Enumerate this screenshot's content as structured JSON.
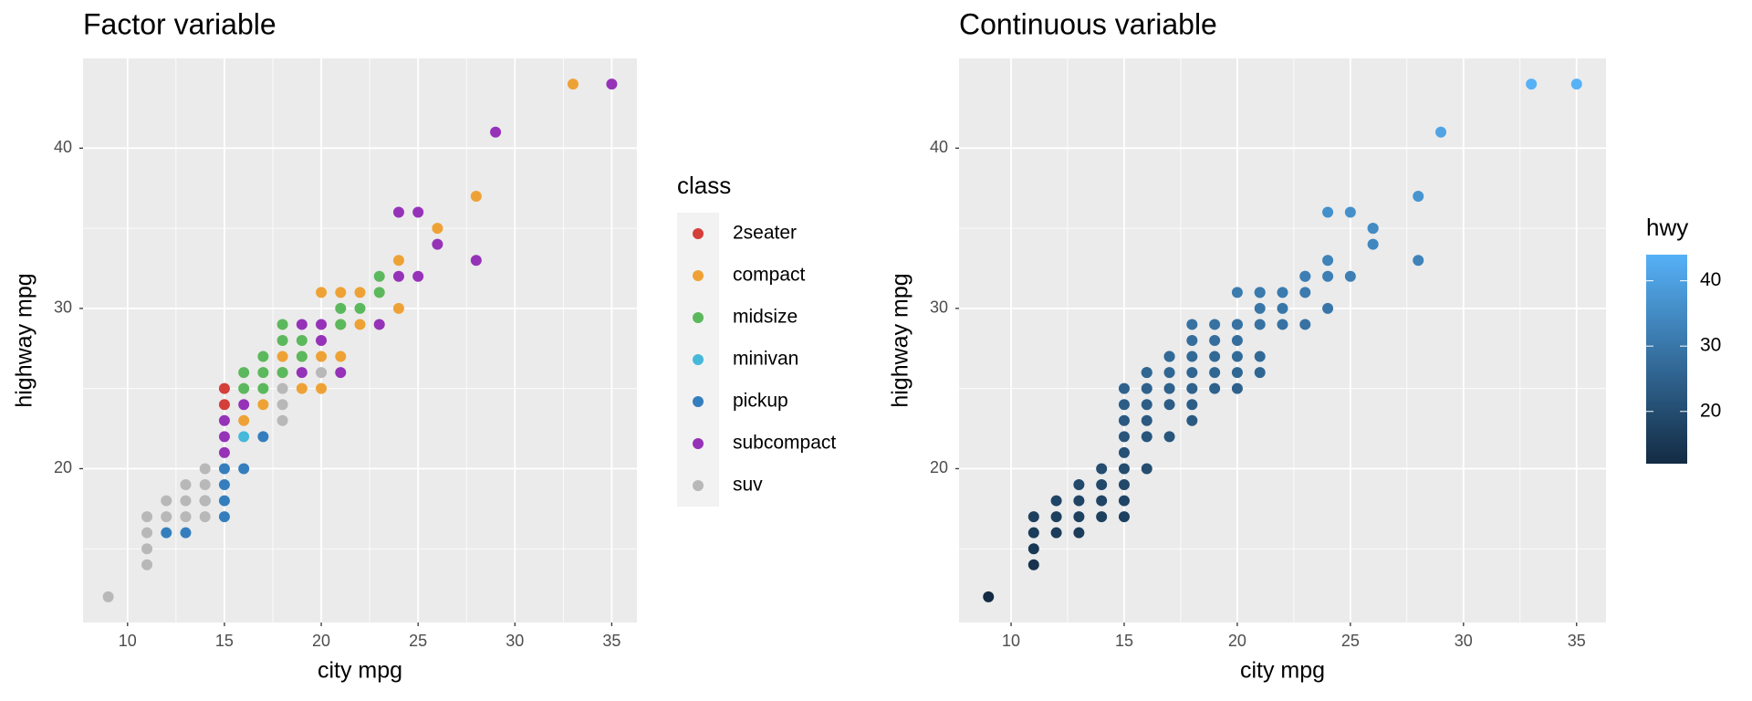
{
  "chart_data": [
    {
      "type": "scatter",
      "title": "Factor variable",
      "xlabel": "city mpg",
      "ylabel": "highway mpg",
      "xlim": [
        7.7,
        36.3
      ],
      "ylim": [
        10.4,
        45.6
      ],
      "xticks": [
        10,
        15,
        20,
        25,
        30,
        35
      ],
      "yticks": [
        20,
        30,
        40
      ],
      "xminor": [
        12.5,
        17.5,
        22.5,
        27.5,
        32.5
      ],
      "yminor": [
        15,
        25,
        35
      ],
      "grid": true,
      "legend_title": "class",
      "series": [
        {
          "name": "2seater",
          "color": "#D43F3A",
          "x": [
            15,
            15
          ],
          "y": [
            25,
            24
          ]
        },
        {
          "name": "compact",
          "color": "#EEA236",
          "x": [
            16,
            17,
            18,
            18,
            19,
            19,
            20,
            20,
            20,
            21,
            21,
            21,
            22,
            22,
            24,
            24,
            26,
            28,
            33
          ],
          "y": [
            23,
            24,
            27,
            26,
            27,
            25,
            31,
            27,
            25,
            31,
            27,
            29,
            31,
            29,
            33,
            30,
            35,
            37,
            44
          ]
        },
        {
          "name": "midsize",
          "color": "#5CB85C",
          "x": [
            16,
            16,
            17,
            17,
            17,
            18,
            18,
            18,
            19,
            19,
            21,
            21,
            22,
            23,
            23
          ],
          "y": [
            26,
            25,
            27,
            26,
            25,
            29,
            28,
            26,
            28,
            27,
            30,
            29,
            30,
            32,
            31
          ]
        },
        {
          "name": "minivan",
          "color": "#46B8DA",
          "x": [
            16
          ],
          "y": [
            22
          ]
        },
        {
          "name": "pickup",
          "color": "#357EBD",
          "x": [
            12,
            13,
            14,
            15,
            15,
            15,
            15,
            16,
            17
          ],
          "y": [
            16,
            16,
            18,
            20,
            19,
            18,
            17,
            20,
            22
          ]
        },
        {
          "name": "subcompact",
          "color": "#9632B8",
          "x": [
            15,
            15,
            15,
            16,
            19,
            19,
            20,
            20,
            21,
            23,
            24,
            24,
            25,
            25,
            26,
            28,
            29,
            35
          ],
          "y": [
            23,
            22,
            21,
            24,
            29,
            26,
            29,
            28,
            26,
            29,
            36,
            32,
            36,
            32,
            34,
            33,
            41,
            44
          ]
        },
        {
          "name": "suv",
          "color": "#B8B8B8",
          "x": [
            9,
            11,
            11,
            11,
            11,
            12,
            12,
            13,
            13,
            13,
            14,
            14,
            14,
            14,
            18,
            18,
            18,
            20
          ],
          "y": [
            12,
            17,
            16,
            15,
            14,
            17,
            18,
            19,
            18,
            17,
            20,
            19,
            18,
            17,
            25,
            24,
            23,
            26
          ]
        }
      ]
    },
    {
      "type": "scatter",
      "title": "Continuous variable",
      "xlabel": "city mpg",
      "ylabel": "highway mpg",
      "xlim": [
        7.7,
        36.3
      ],
      "ylim": [
        10.4,
        45.6
      ],
      "xticks": [
        10,
        15,
        20,
        25,
        30,
        35
      ],
      "yticks": [
        20,
        30,
        40
      ],
      "xminor": [
        12.5,
        17.5,
        22.5,
        27.5,
        32.5
      ],
      "yminor": [
        15,
        25,
        35
      ],
      "grid": true,
      "color_scale": {
        "name": "hwy",
        "low": "#132B43",
        "high": "#56B1F7",
        "lim": [
          12,
          44
        ],
        "ticks": [
          20,
          30,
          40
        ]
      },
      "x": [
        9,
        11,
        11,
        11,
        11,
        12,
        12,
        12,
        13,
        13,
        13,
        13,
        14,
        14,
        14,
        14,
        15,
        15,
        15,
        15,
        15,
        15,
        15,
        15,
        15,
        16,
        16,
        16,
        16,
        16,
        16,
        16,
        17,
        17,
        17,
        17,
        17,
        17,
        18,
        18,
        18,
        18,
        18,
        18,
        18,
        19,
        19,
        19,
        19,
        19,
        20,
        20,
        20,
        20,
        20,
        20,
        20,
        21,
        21,
        21,
        21,
        21,
        21,
        22,
        22,
        22,
        23,
        23,
        23,
        23,
        24,
        24,
        24,
        24,
        25,
        25,
        26,
        26,
        26,
        28,
        28,
        29,
        33,
        35
      ],
      "y": [
        12,
        17,
        16,
        15,
        14,
        18,
        17,
        16,
        19,
        18,
        17,
        16,
        20,
        19,
        18,
        17,
        25,
        24,
        23,
        22,
        21,
        20,
        19,
        18,
        17,
        26,
        25,
        24,
        23,
        22,
        20,
        26,
        27,
        26,
        25,
        24,
        22,
        27,
        29,
        28,
        27,
        26,
        25,
        24,
        23,
        29,
        28,
        27,
        26,
        25,
        31,
        29,
        28,
        27,
        26,
        25,
        29,
        31,
        30,
        29,
        27,
        26,
        31,
        31,
        30,
        29,
        32,
        31,
        29,
        32,
        36,
        33,
        32,
        30,
        36,
        32,
        35,
        34,
        35,
        37,
        33,
        41,
        44,
        44
      ]
    }
  ]
}
